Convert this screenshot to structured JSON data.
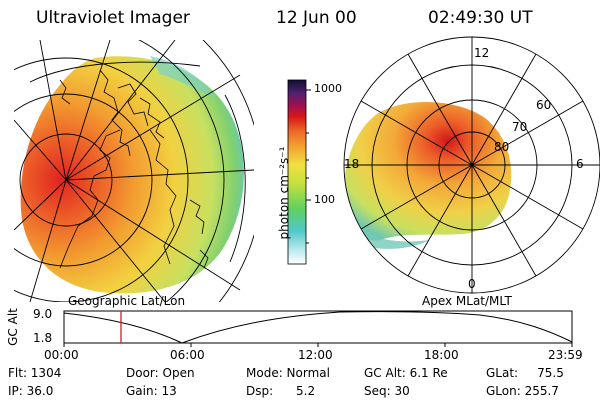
{
  "header": {
    "instrument": "Ultraviolet Imager",
    "date": "12 Jun 00",
    "time": "02:49:30 UT"
  },
  "left_map": {
    "label": "Geographic Lat/Lon"
  },
  "right_map": {
    "label": "Apex MLat/MLT",
    "mlt_labels": [
      "12",
      "18",
      "6",
      "0"
    ],
    "lat_labels": [
      "60",
      "70",
      "80"
    ]
  },
  "colorbar": {
    "unit": "photon cm⁻²s⁻¹",
    "ticks": [
      "1000",
      "100"
    ]
  },
  "altitude_plot": {
    "ylabel": "GC Alt",
    "yticks": [
      "9.0",
      "1.8"
    ],
    "xticks": [
      "00:00",
      "06:00",
      "12:00",
      "18:00",
      "23:59"
    ],
    "marker_time": "02:49"
  },
  "info": {
    "flt": "Flt: 1304",
    "ip": "IP: 36.0",
    "door": "Door: Open",
    "gain": "Gain: 13",
    "mode": "Mode: Normal",
    "dsp": "Dsp:      5.2",
    "gc_alt": "GC Alt: 6.1 Re",
    "seq": "Seq: 30",
    "glat": "GLat:     75.5",
    "glon": "GLon: 255.7"
  },
  "colors": {
    "aurora_low": "#7ec850",
    "aurora_mid": "#f0a030",
    "aurora_high": "#d02020",
    "marker": "#d02020"
  }
}
